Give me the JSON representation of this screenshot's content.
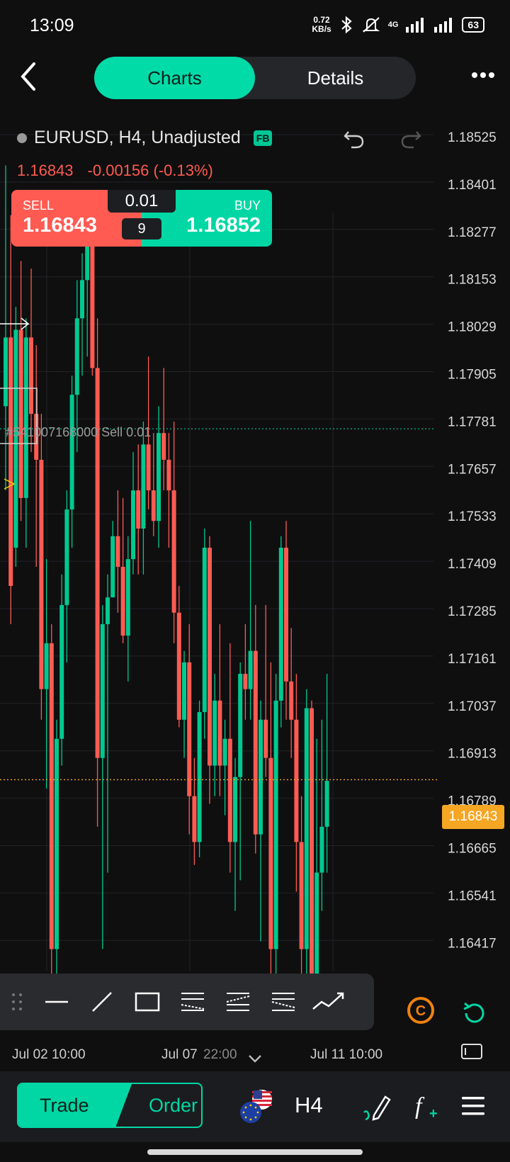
{
  "status_bar": {
    "time": "13:09",
    "net_speed_value": "0.72",
    "net_speed_unit": "KB/s",
    "network": "4G",
    "battery": "63"
  },
  "header": {
    "tabs": [
      {
        "label": "Charts",
        "active": true
      },
      {
        "label": "Details",
        "active": false
      }
    ]
  },
  "instrument": {
    "title": "EURUSD, H4, Unadjusted",
    "badge": "FB",
    "last_price": "1.16843",
    "change": "-0.00156 (-0.13%)"
  },
  "trade_panel": {
    "sell_label": "SELL",
    "sell_price": "1.16843",
    "buy_label": "BUY",
    "buy_price": "1.16852",
    "lot": "0.01",
    "spread": "9"
  },
  "order_line_label": "#541007168000 Sell 0.01",
  "current_price_tag": "1.16843",
  "time_axis": [
    "Jul 02 10:00",
    "Jul 07",
    "22:00",
    "Jul 11 10:00"
  ],
  "chart_data": {
    "type": "candlestick",
    "title": "EURUSD, H4, Unadjusted",
    "y_ticks": [
      1.18525,
      1.18401,
      1.18277,
      1.18153,
      1.18029,
      1.17905,
      1.17781,
      1.17657,
      1.17533,
      1.17409,
      1.17285,
      1.17161,
      1.17037,
      1.16913,
      1.16789,
      1.16665,
      1.16541,
      1.16417
    ],
    "ylim": [
      1.164,
      1.186
    ],
    "x_labels": [
      "Jul 02 10:00",
      "Jul 07",
      "22:00",
      "Jul 11 10:00"
    ],
    "current_price": 1.16843,
    "order_line": 1.17761,
    "colors": {
      "up": "#00c98f",
      "down": "#ff5b52",
      "current_price": "#f5a623",
      "order_line": "#00c98f"
    },
    "candles": [
      [
        1.1782,
        1.1845,
        1.176,
        1.18
      ],
      [
        1.18,
        1.1832,
        1.1725,
        1.1735
      ],
      [
        1.1745,
        1.1808,
        1.174,
        1.1802
      ],
      [
        1.1802,
        1.182,
        1.1752,
        1.1758
      ],
      [
        1.1758,
        1.1805,
        1.1745,
        1.18
      ],
      [
        1.18,
        1.1818,
        1.177,
        1.178
      ],
      [
        1.178,
        1.1798,
        1.174,
        1.1768
      ],
      [
        1.1768,
        1.178,
        1.17,
        1.1708
      ],
      [
        1.1708,
        1.1742,
        1.1682,
        1.172
      ],
      [
        1.172,
        1.1725,
        1.163,
        1.164
      ],
      [
        1.164,
        1.17,
        1.162,
        1.1695
      ],
      [
        1.1695,
        1.1738,
        1.1688,
        1.173
      ],
      [
        1.173,
        1.176,
        1.1715,
        1.1755
      ],
      [
        1.1755,
        1.179,
        1.1745,
        1.1785
      ],
      [
        1.1785,
        1.1815,
        1.177,
        1.1805
      ],
      [
        1.1805,
        1.1822,
        1.179,
        1.1815
      ],
      [
        1.1815,
        1.1835,
        1.1795,
        1.1828
      ],
      [
        1.1828,
        1.1838,
        1.179,
        1.1792
      ],
      [
        1.1792,
        1.1805,
        1.1672,
        1.169
      ],
      [
        1.169,
        1.173,
        1.164,
        1.1725
      ],
      [
        1.1725,
        1.1738,
        1.166,
        1.1732
      ],
      [
        1.1732,
        1.1752,
        1.1732,
        1.1748
      ],
      [
        1.1748,
        1.176,
        1.1728,
        1.174
      ],
      [
        1.174,
        1.1758,
        1.172,
        1.1722
      ],
      [
        1.1722,
        1.1748,
        1.171,
        1.1742
      ],
      [
        1.1742,
        1.177,
        1.1738,
        1.176
      ],
      [
        1.176,
        1.1772,
        1.1738,
        1.175
      ],
      [
        1.175,
        1.1778,
        1.1738,
        1.1772
      ],
      [
        1.1772,
        1.1795,
        1.1755,
        1.176
      ],
      [
        1.176,
        1.1775,
        1.1748,
        1.1752
      ],
      [
        1.1752,
        1.1782,
        1.1745,
        1.1775
      ],
      [
        1.1775,
        1.1792,
        1.176,
        1.1768
      ],
      [
        1.1768,
        1.1775,
        1.1745,
        1.176
      ],
      [
        1.176,
        1.1778,
        1.172,
        1.1728
      ],
      [
        1.1728,
        1.1735,
        1.1698,
        1.17
      ],
      [
        1.17,
        1.1718,
        1.169,
        1.1715
      ],
      [
        1.1715,
        1.1725,
        1.167,
        1.168
      ],
      [
        1.168,
        1.169,
        1.1662,
        1.1668
      ],
      [
        1.1668,
        1.1705,
        1.1664,
        1.1702
      ],
      [
        1.1702,
        1.175,
        1.1695,
        1.1745
      ],
      [
        1.1745,
        1.1748,
        1.1678,
        1.1688
      ],
      [
        1.1688,
        1.1712,
        1.168,
        1.1705
      ],
      [
        1.1705,
        1.1725,
        1.168,
        1.1688
      ],
      [
        1.1688,
        1.17,
        1.1675,
        1.1695
      ],
      [
        1.1695,
        1.172,
        1.166,
        1.1668
      ],
      [
        1.1668,
        1.169,
        1.165,
        1.1685
      ],
      [
        1.1685,
        1.1715,
        1.1658,
        1.1712
      ],
      [
        1.1712,
        1.1725,
        1.17,
        1.1708
      ],
      [
        1.1708,
        1.1752,
        1.17,
        1.1718
      ],
      [
        1.1718,
        1.173,
        1.1665,
        1.167
      ],
      [
        1.167,
        1.1705,
        1.1642,
        1.17
      ],
      [
        1.17,
        1.173,
        1.1685,
        1.169
      ],
      [
        1.169,
        1.1715,
        1.1628,
        1.164
      ],
      [
        1.164,
        1.1712,
        1.1632,
        1.1705
      ],
      [
        1.1705,
        1.1748,
        1.1698,
        1.1745
      ],
      [
        1.1745,
        1.1752,
        1.17,
        1.171
      ],
      [
        1.171,
        1.1724,
        1.169,
        1.17
      ],
      [
        1.17,
        1.1712,
        1.1655,
        1.1668
      ],
      [
        1.1668,
        1.168,
        1.1625,
        1.164
      ],
      [
        1.164,
        1.1708,
        1.162,
        1.1703
      ],
      [
        1.1703,
        1.1705,
        1.1622,
        1.1632
      ],
      [
        1.1632,
        1.1695,
        1.1625,
        1.166
      ],
      [
        1.166,
        1.17,
        1.165,
        1.1672
      ],
      [
        1.1672,
        1.1712,
        1.166,
        1.1684
      ]
    ]
  }
}
